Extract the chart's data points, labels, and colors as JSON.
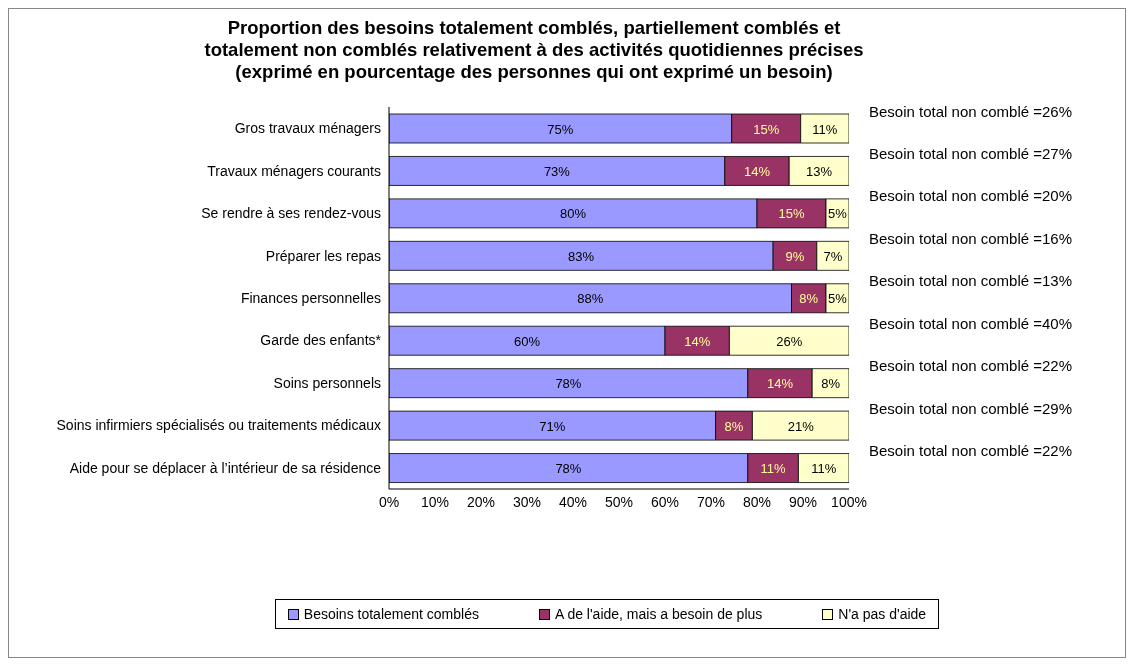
{
  "chart_data": {
    "type": "bar",
    "orientation": "horizontal",
    "stacked": true,
    "title": "Proportion des besoins totalement comblés, partiellement comblés et totalement non comblés relativement à des activités quotidiennes précises (exprimé en pourcentage des personnes qui ont exprimé un besoin)",
    "categories": [
      "Gros travaux ménagers",
      "Travaux ménagers courants",
      "Se rendre à ses rendez-vous",
      "Préparer les repas",
      "Finances personnelles",
      "Garde des enfants*",
      "Soins personnels",
      "Soins infirmiers spécialisés ou traitements médicaux",
      "Aide pour se déplacer à l’intérieur de sa résidence"
    ],
    "series": [
      {
        "name": "Besoins totalement comblés",
        "color": "#9999ff",
        "values": [
          74.5,
          73,
          80,
          83.5,
          87.5,
          60,
          78,
          71,
          78
        ],
        "value_labels": [
          "75%",
          "73%",
          "80%",
          "83%",
          "88%",
          "60%",
          "78%",
          "71%",
          "78%"
        ]
      },
      {
        "name": "A de l'aide, mais a besoin de plus",
        "color": "#993366",
        "values": [
          15,
          14,
          15,
          9.5,
          7.5,
          14,
          14,
          8,
          11
        ],
        "value_labels": [
          "15%",
          "14%",
          "15%",
          "9%",
          "8%",
          "14%",
          "14%",
          "8%",
          "11%"
        ]
      },
      {
        "name": "N'a pas d'aide",
        "color": "#ffffcc",
        "values": [
          10.5,
          13,
          5,
          7,
          5,
          26,
          8,
          21,
          11
        ],
        "value_labels": [
          "11%",
          "13%",
          "5%",
          "7%",
          "5%",
          "26%",
          "8%",
          "21%",
          "11%"
        ]
      }
    ],
    "xlim": [
      0,
      100
    ],
    "xticks": [
      {
        "value": 0,
        "label": "0%"
      },
      {
        "value": 10,
        "label": "10%"
      },
      {
        "value": 20,
        "label": "20%"
      },
      {
        "value": 30,
        "label": "30%"
      },
      {
        "value": 40,
        "label": "40%"
      },
      {
        "value": 50,
        "label": "50%"
      },
      {
        "value": 60,
        "label": "60%"
      },
      {
        "value": 70,
        "label": "70%"
      },
      {
        "value": 80,
        "label": "80%"
      },
      {
        "value": 90,
        "label": "90%"
      },
      {
        "value": 100,
        "label": "100%"
      }
    ],
    "annotations": [
      "Besoin total non comblé =26%",
      "Besoin total non comblé =27%",
      "Besoin total non comblé =20%",
      "Besoin total non comblé =16%",
      "Besoin total non comblé =13%",
      "Besoin total non comblé =40%",
      "Besoin total non comblé =22%",
      "Besoin total non comblé =29%",
      "Besoin total non comblé =22%"
    ],
    "grid": false,
    "legend": "bottom"
  }
}
